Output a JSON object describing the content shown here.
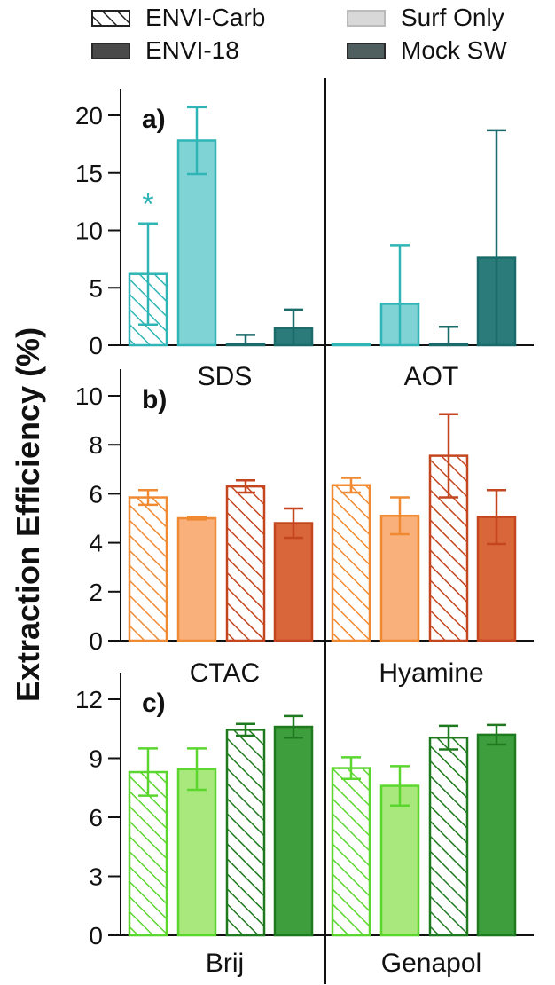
{
  "chart_data": {
    "type": "bar",
    "ylabel": "Extraction Efficiency (%)",
    "legend": {
      "placement": "top",
      "entries": [
        {
          "name": "ENVI-Carb",
          "style": "hatched"
        },
        {
          "name": "Surf Only",
          "style": "light"
        },
        {
          "name": "ENVI-18",
          "style": "dark-solid"
        },
        {
          "name": "Mock SW",
          "style": "dark"
        }
      ]
    },
    "series_order": [
      "ENVI-Carb",
      "Surf Only",
      "ENVI-18",
      "Mock SW"
    ],
    "panels": [
      {
        "label": "a)",
        "ylim": [
          0,
          22
        ],
        "yticks": [
          0,
          5,
          10,
          15,
          20
        ],
        "colors": {
          "light": "#5ec4c6",
          "dark": "#1a6b6a",
          "stroke": "#2fb5b5",
          "dark_stroke": "#1a6b6a",
          "fill_light": "#7fd3d4",
          "fill_dark": "#2a7b79"
        },
        "groups": [
          {
            "name": "SDS",
            "values": [
              6.2,
              17.8,
              0.1,
              1.5
            ],
            "errors": [
              4.4,
              2.9,
              0.8,
              1.6
            ],
            "annotation": "*"
          },
          {
            "name": "AOT",
            "values": [
              0.05,
              3.6,
              0.1,
              7.6
            ],
            "errors": [
              0.0,
              5.1,
              1.5,
              11.1
            ]
          }
        ]
      },
      {
        "label": "b)",
        "ylim": [
          0,
          10
        ],
        "yticks": [
          0,
          2,
          4,
          6,
          8,
          10
        ],
        "colors": {
          "light": "#f9b07a",
          "dark": "#d9653a",
          "stroke": "#f08a32",
          "dark_stroke": "#c4461f",
          "fill_light": "#f9b07a",
          "fill_dark": "#d9653a"
        },
        "groups": [
          {
            "name": "CTAC",
            "values": [
              5.85,
              5.0,
              6.3,
              4.8
            ],
            "errors": [
              0.3,
              0.05,
              0.25,
              0.6
            ]
          },
          {
            "name": "Hyamine",
            "values": [
              6.35,
              5.1,
              7.55,
              5.05
            ],
            "errors": [
              0.3,
              0.75,
              1.7,
              1.1
            ]
          }
        ]
      },
      {
        "label": "c)",
        "ylim": [
          0,
          12
        ],
        "yticks": [
          0,
          3,
          6,
          9,
          12
        ],
        "colors": {
          "light": "#a8e87c",
          "dark": "#3a9a3a",
          "stroke": "#5bd62e",
          "dark_stroke": "#1f7a1f",
          "fill_light": "#a8e87c",
          "fill_dark": "#3e9e3e"
        },
        "groups": [
          {
            "name": "Brij",
            "values": [
              8.3,
              8.45,
              10.45,
              10.6
            ],
            "errors": [
              1.2,
              1.05,
              0.3,
              0.55
            ]
          },
          {
            "name": "Genapol",
            "values": [
              8.5,
              7.6,
              10.05,
              10.2
            ],
            "errors": [
              0.55,
              1.0,
              0.6,
              0.5
            ]
          }
        ]
      }
    ]
  }
}
